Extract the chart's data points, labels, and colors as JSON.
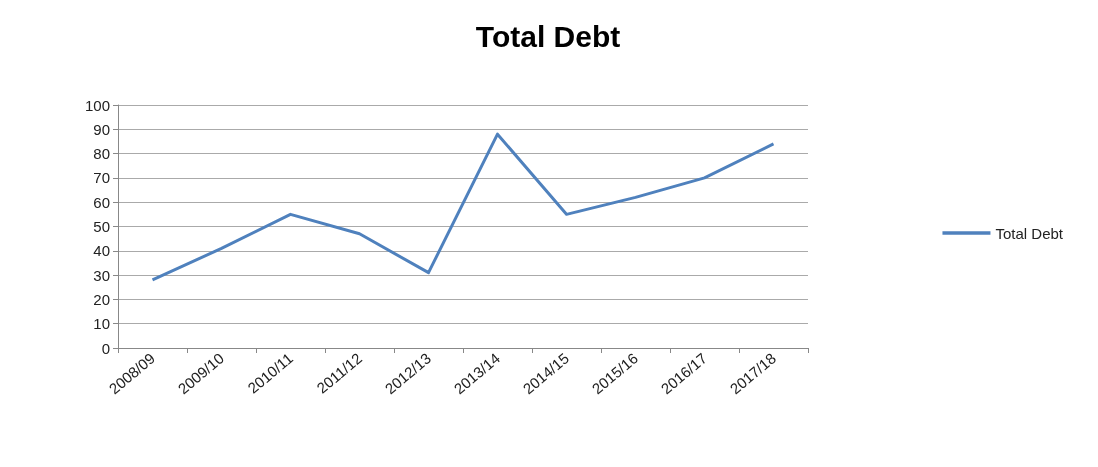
{
  "chart_data": {
    "type": "line",
    "title": "Total Debt",
    "categories": [
      "2008/09",
      "2009/10",
      "2010/11",
      "2011/12",
      "2012/13",
      "2013/14",
      "2014/15",
      "2015/16",
      "2016/17",
      "2017/18"
    ],
    "series": [
      {
        "name": "Total Debt",
        "color": "#4f81bd",
        "values": [
          28,
          41,
          55,
          47,
          31,
          88,
          55,
          62,
          70,
          84
        ]
      }
    ],
    "ylim": [
      0,
      100
    ],
    "yticks": [
      0,
      10,
      20,
      30,
      40,
      50,
      60,
      70,
      80,
      90,
      100
    ],
    "grid": "y",
    "legend": "right",
    "marker": "none"
  }
}
